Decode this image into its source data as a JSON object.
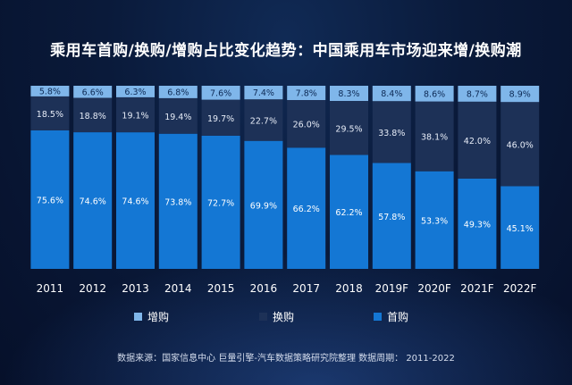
{
  "title": "乘用车首购/换购/增购占比变化趋势：中国乘用车市场迎来增/换购潮",
  "source": "数据来源：国家信息中心  巨量引擎-汽车数据策略研究院整理  数据周期： 2011-2022",
  "colors": {
    "增购": "#7fb6ea",
    "换购": "#1d3157",
    "首购": "#1477d4",
    "text": "#ffffff"
  },
  "chart_data": {
    "type": "bar",
    "stacked": true,
    "categories": [
      "2011",
      "2012",
      "2013",
      "2014",
      "2015",
      "2016",
      "2017",
      "2018",
      "2019F",
      "2020F",
      "2021F",
      "2022F"
    ],
    "series": [
      {
        "name": "首购",
        "values": [
          75.6,
          74.6,
          74.6,
          73.8,
          72.7,
          69.9,
          66.2,
          62.2,
          57.8,
          53.3,
          49.3,
          45.1
        ]
      },
      {
        "name": "换购",
        "values": [
          18.5,
          18.8,
          19.1,
          19.4,
          19.7,
          22.7,
          26.0,
          29.5,
          33.8,
          38.1,
          42.0,
          46.0
        ]
      },
      {
        "name": "增购",
        "values": [
          5.8,
          6.6,
          6.3,
          6.8,
          7.6,
          7.4,
          7.8,
          8.3,
          8.4,
          8.6,
          8.7,
          8.9
        ]
      }
    ],
    "data_labels": [
      {
        "首购": "75.6%",
        "换购": "18.5%",
        "增购": "5.8%"
      },
      {
        "首购": "74.6%",
        "换购": "18.8%",
        "增购": "6.6%"
      },
      {
        "首购": "74.6%",
        "换购": "19.1%",
        "增购": "6.3%"
      },
      {
        "首购": "73.8%",
        "换购": "19.4%",
        "增购": "6.8%"
      },
      {
        "首购": "72.7%",
        "换购": "19.7%",
        "增购": "7.6%"
      },
      {
        "首购": "69.9%",
        "换购": "22.7%",
        "增购": "7.4%"
      },
      {
        "首购": "66.2%",
        "换购": "26.0%",
        "增购": "7.8%"
      },
      {
        "首购": "62.2%",
        "换购": "29.5%",
        "增购": "8.3%"
      },
      {
        "首购": "57.8%",
        "换购": "33.8%",
        "增购": "8.4%"
      },
      {
        "首购": "53.3%",
        "换购": "38.1%",
        "增购": "8.6%"
      },
      {
        "首购": "49.3%",
        "换购": "42.0%",
        "增购": "8.7%"
      },
      {
        "首购": "45.1%",
        "换购": "46.0%",
        "增购": "8.9%"
      }
    ],
    "legend": {
      "position": "bottom",
      "order": [
        "增购",
        "换购",
        "首购"
      ]
    },
    "ylim": [
      0,
      100
    ],
    "grid": false
  }
}
